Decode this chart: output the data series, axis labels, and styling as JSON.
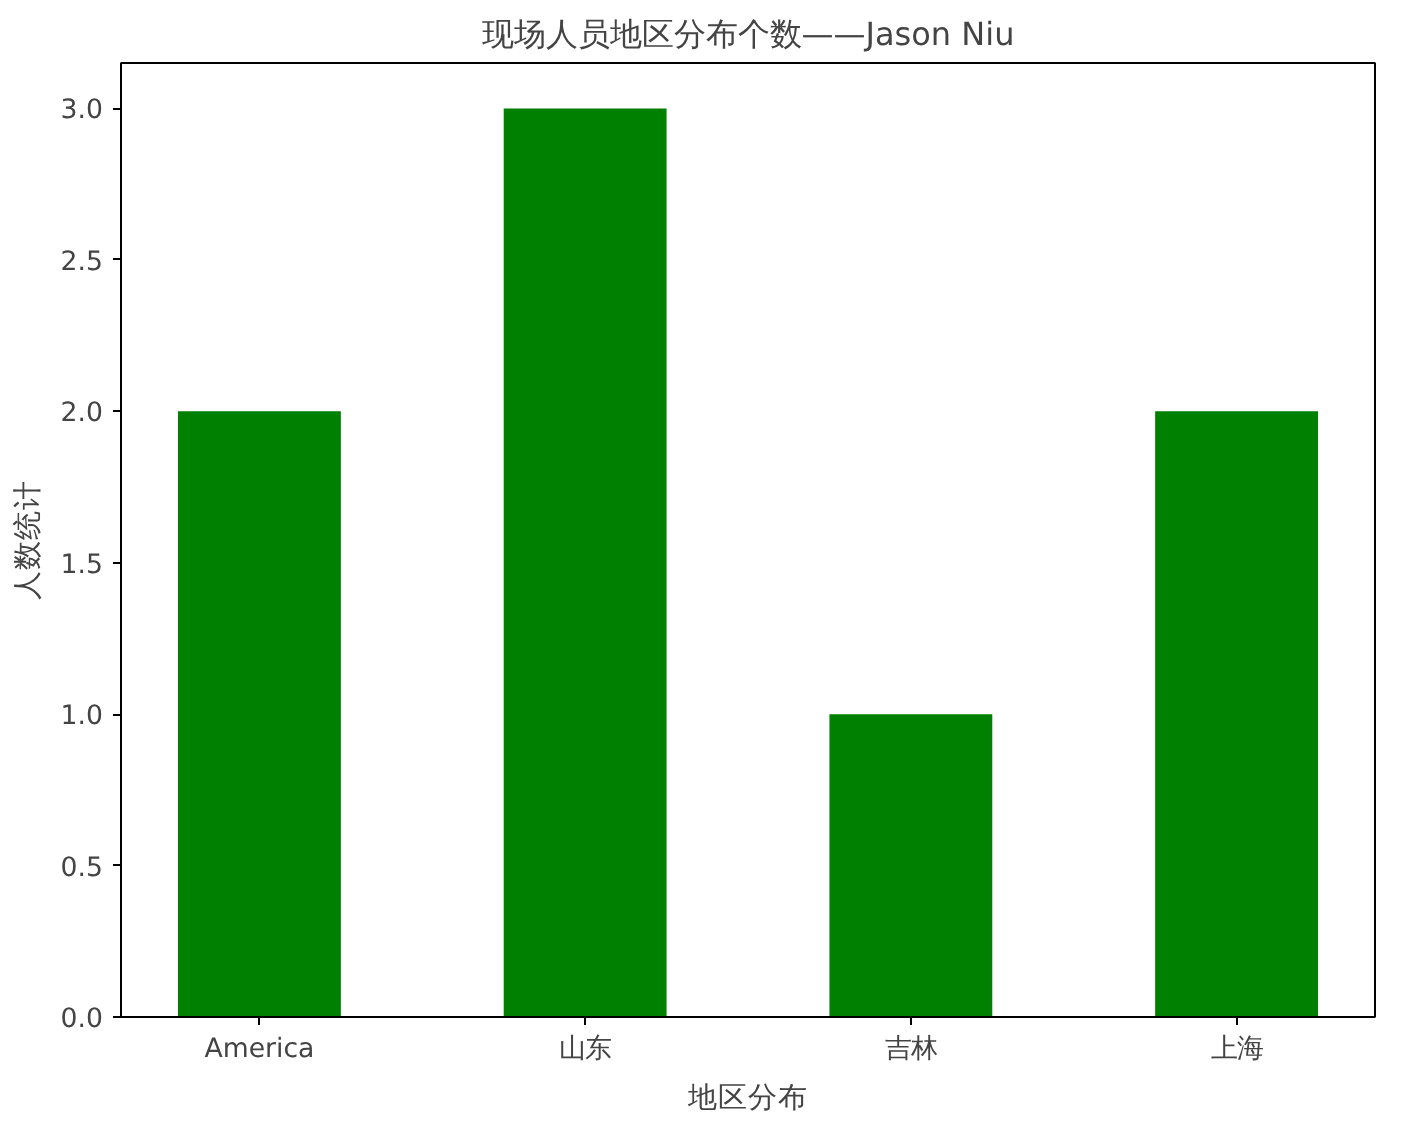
{
  "chart_data": {
    "type": "bar",
    "title": "现场人员地区分布个数——Jason Niu",
    "xlabel": "地区分布",
    "ylabel": "人数统计",
    "categories": [
      "America",
      "山东",
      "吉林",
      "上海"
    ],
    "values": [
      2,
      3,
      1,
      2
    ],
    "color": "#008000",
    "ylim": [
      0,
      3.15
    ],
    "yticks": [
      {
        "value": 0,
        "label": "0.0"
      },
      {
        "value": 0.5,
        "label": "0.5"
      },
      {
        "value": 1,
        "label": "1.0"
      },
      {
        "value": 1.5,
        "label": "1.5"
      },
      {
        "value": 2,
        "label": "2.0"
      },
      {
        "value": 2.5,
        "label": "2.5"
      },
      {
        "value": 3,
        "label": "3.0"
      }
    ],
    "grid": false
  }
}
